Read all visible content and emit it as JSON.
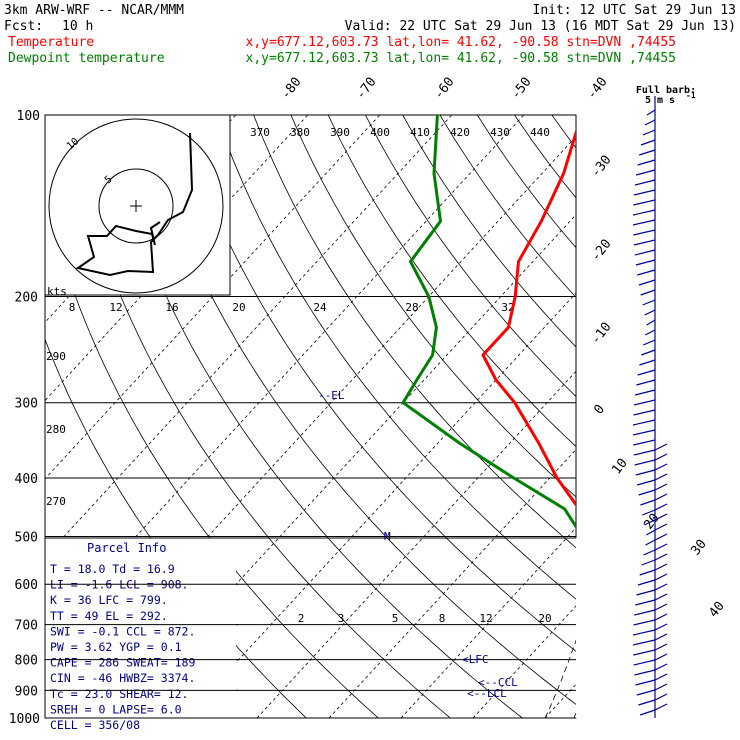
{
  "header": {
    "model": "3km ARW-WRF -- NCAR/MMM",
    "init": "Init: 12 UTC Sat 29 Jun 13",
    "fcst_label": "Fcst:",
    "fcst_value": "10 h",
    "valid": "Valid: 22 UTC Sat 29 Jun 13 (16 MDT Sat 29 Jun 13)",
    "temp_label": "Temperature",
    "temp_loc": "x,y=677.12,603.73   lat,lon= 41.62, -90.58  stn=DVN ,74455",
    "dew_label": "Dewpoint temperature",
    "dew_loc": "x,y=677.12,603.73   lat,lon= 41.62, -90.58  stn=DVN ,74455",
    "full_barb_1": "Full barb:",
    "full_barb_2": "5 m s",
    "full_barb_exp": "-1"
  },
  "colors": {
    "temperature": "#ff0000",
    "dewpoint": "#008000",
    "labels": "#00008b",
    "barbs": "#0000a0"
  },
  "chart_data": {
    "type": "skew-t",
    "y_axis_pressure_hPa": [
      100,
      200,
      300,
      400,
      500,
      600,
      700,
      800,
      900,
      1000
    ],
    "skewed_temperature_labels_C": [
      "-80",
      "-70",
      "-60",
      "-50",
      "-40",
      "-30",
      "-20",
      "-10",
      "0",
      "10",
      "20",
      "30",
      "40"
    ],
    "theta_labels_K": [
      "370",
      "380",
      "390",
      "400",
      "410",
      "420",
      "430",
      "440"
    ],
    "mixing_ratio_labels": [
      "2",
      "3",
      "5",
      "8",
      "12",
      "20"
    ],
    "hodograph": {
      "unit_label": "kts",
      "ring_labels": [
        "5",
        "10"
      ],
      "speed_ticks": [
        "8",
        "12",
        "16",
        "20",
        "24",
        "28",
        "32"
      ]
    },
    "left_labels_K": [
      "290",
      "280",
      "270"
    ],
    "level_markers": [
      "EL",
      "LFC",
      "CCL",
      "LCL",
      "M"
    ],
    "temperature_profile": [
      {
        "p": 1000,
        "t": 20.0
      },
      {
        "p": 975,
        "t": 21.5
      },
      {
        "p": 950,
        "t": 21.0
      },
      {
        "p": 925,
        "t": 19.5
      },
      {
        "p": 900,
        "t": 18.0
      },
      {
        "p": 850,
        "t": 16.0
      },
      {
        "p": 800,
        "t": 13.0
      },
      {
        "p": 750,
        "t": 10.5
      },
      {
        "p": 700,
        "t": 8.0
      },
      {
        "p": 650,
        "t": 5.5
      },
      {
        "p": 600,
        "t": 2.0
      },
      {
        "p": 550,
        "t": -2.0
      },
      {
        "p": 500,
        "t": -6.5
      },
      {
        "p": 450,
        "t": -12.0
      },
      {
        "p": 400,
        "t": -19.0
      },
      {
        "p": 350,
        "t": -26.0
      },
      {
        "p": 300,
        "t": -34.5
      },
      {
        "p": 275,
        "t": -40.0
      },
      {
        "p": 250,
        "t": -45.0
      },
      {
        "p": 225,
        "t": -45.0
      },
      {
        "p": 200,
        "t": -48.0
      },
      {
        "p": 175,
        "t": -52.0
      },
      {
        "p": 150,
        "t": -54.0
      },
      {
        "p": 125,
        "t": -57.0
      },
      {
        "p": 100,
        "t": -62.0
      }
    ],
    "dewpoint_profile": [
      {
        "p": 1000,
        "t": 16.0
      },
      {
        "p": 975,
        "t": 17.0
      },
      {
        "p": 950,
        "t": 17.0
      },
      {
        "p": 925,
        "t": 15.5
      },
      {
        "p": 900,
        "t": 14.0
      },
      {
        "p": 850,
        "t": 11.5
      },
      {
        "p": 800,
        "t": 10.0
      },
      {
        "p": 750,
        "t": 9.0
      },
      {
        "p": 700,
        "t": 7.0
      },
      {
        "p": 650,
        "t": 5.0
      },
      {
        "p": 600,
        "t": 1.5
      },
      {
        "p": 550,
        "t": -3.0
      },
      {
        "p": 500,
        "t": -8.0
      },
      {
        "p": 450,
        "t": -14.0
      },
      {
        "p": 400,
        "t": -25.0
      },
      {
        "p": 350,
        "t": -37.0
      },
      {
        "p": 300,
        "t": -50.0
      },
      {
        "p": 275,
        "t": -51.0
      },
      {
        "p": 250,
        "t": -52.0
      },
      {
        "p": 225,
        "t": -55.0
      },
      {
        "p": 200,
        "t": -60.0
      },
      {
        "p": 175,
        "t": -67.0
      },
      {
        "p": 150,
        "t": -68.0
      },
      {
        "p": 125,
        "t": -75.0
      },
      {
        "p": 100,
        "t": -82.0
      }
    ]
  },
  "parcel_info": {
    "title": "Parcel Info",
    "rows": [
      "T  =    18.0  Td =  16.9",
      "LI =    -1.6  LCL =  908.",
      "K  =      36  LFC =  799.",
      "TT =      49  EL  =  292.",
      "SWI =   -0.1  CCL =  872.",
      "PW =    3.62  YGP =   0.1",
      "CAPE =   286  SWEAT=  189",
      "CIN =    -46  HWBZ= 3374.",
      "Tc  =   23.0  SHEAR=  12.",
      "SREH =     0  LAPSE=  6.0",
      "CELL = 356/08"
    ]
  }
}
